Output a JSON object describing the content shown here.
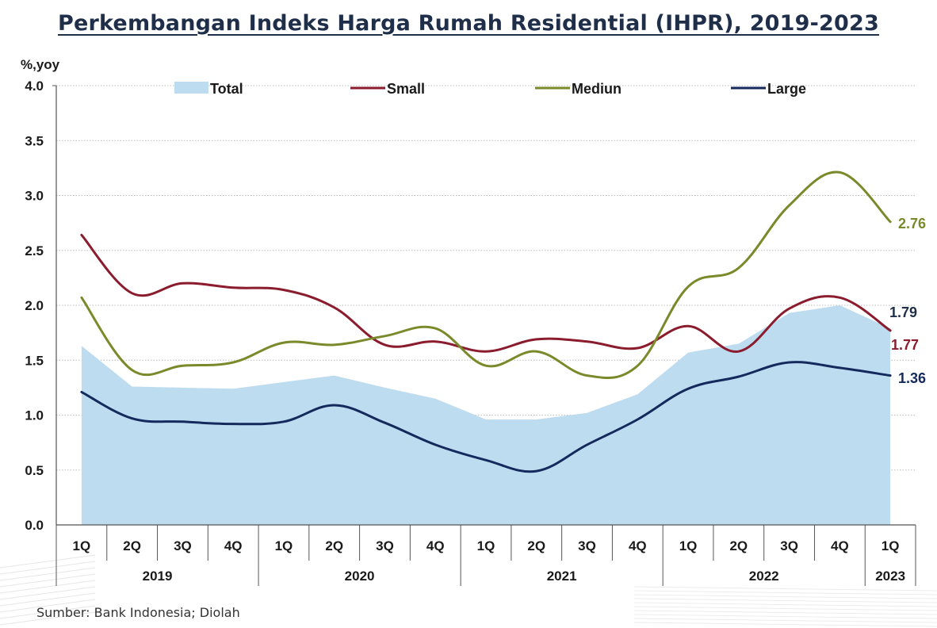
{
  "title": "Perkembangan Indeks Harga Rumah Residential (IHPR), 2019-2023",
  "source": "Sumber: Bank Indonesia; Diolah",
  "colors": {
    "total": "#bddcf0",
    "small": "#8b1c2e",
    "medium": "#7a8a2a",
    "large": "#142a5c"
  },
  "chart_data": {
    "type": "line",
    "ylabel": "%,yoy",
    "ylim": [
      0,
      4.0
    ],
    "yticks": [
      "0.0",
      "0.5",
      "1.0",
      "1.5",
      "2.0",
      "2.5",
      "3.0",
      "3.5",
      "4.0"
    ],
    "grid": true,
    "legend_position": "top",
    "categories": [
      "1Q",
      "2Q",
      "3Q",
      "4Q",
      "1Q",
      "2Q",
      "3Q",
      "4Q",
      "1Q",
      "2Q",
      "3Q",
      "4Q",
      "1Q",
      "2Q",
      "3Q",
      "4Q",
      "1Q"
    ],
    "years": [
      {
        "label": "2019",
        "quarters": 4
      },
      {
        "label": "2020",
        "quarters": 4
      },
      {
        "label": "2021",
        "quarters": 4
      },
      {
        "label": "2022",
        "quarters": 4
      },
      {
        "label": "2023",
        "quarters": 1
      }
    ],
    "series": [
      {
        "name": "Total",
        "style": "area",
        "values": [
          1.63,
          1.26,
          1.25,
          1.24,
          1.3,
          1.36,
          1.25,
          1.15,
          0.96,
          0.96,
          1.02,
          1.19,
          1.57,
          1.65,
          1.93,
          2.0,
          1.79
        ]
      },
      {
        "name": "Small",
        "style": "line",
        "values": [
          2.64,
          2.11,
          2.2,
          2.16,
          2.14,
          1.98,
          1.64,
          1.67,
          1.58,
          1.69,
          1.67,
          1.61,
          1.81,
          1.58,
          1.97,
          2.07,
          1.77
        ]
      },
      {
        "name": "Mediun",
        "style": "line",
        "values": [
          2.07,
          1.41,
          1.45,
          1.48,
          1.66,
          1.64,
          1.72,
          1.79,
          1.45,
          1.58,
          1.36,
          1.45,
          2.17,
          2.34,
          2.91,
          3.21,
          2.76
        ]
      },
      {
        "name": "Large",
        "style": "line",
        "values": [
          1.21,
          0.97,
          0.94,
          0.92,
          0.94,
          1.09,
          0.93,
          0.73,
          0.59,
          0.49,
          0.73,
          0.96,
          1.24,
          1.35,
          1.48,
          1.43,
          1.36
        ]
      }
    ],
    "end_labels": [
      {
        "series": "Mediun",
        "text": "2.76"
      },
      {
        "series": "Total",
        "text": "1.79"
      },
      {
        "series": "Small",
        "text": "1.77"
      },
      {
        "series": "Large",
        "text": "1.36"
      }
    ]
  }
}
